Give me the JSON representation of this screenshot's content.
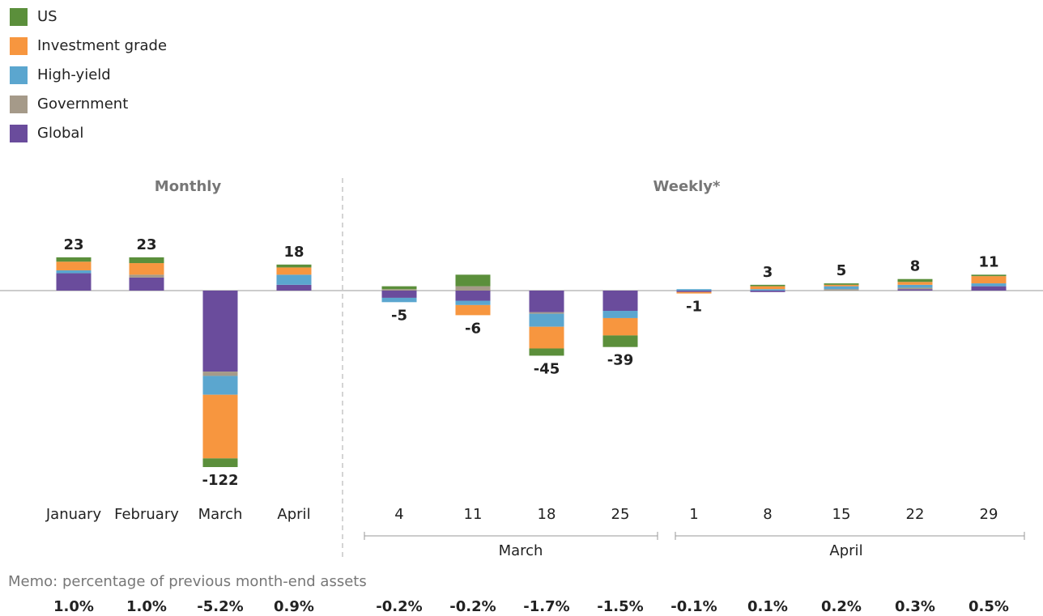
{
  "chart_data": {
    "type": "stacked-bar",
    "panels": [
      "Monthly",
      "Weekly*"
    ],
    "categories": [
      "January",
      "February",
      "March",
      "April",
      "4",
      "11",
      "18",
      "25",
      "1",
      "8",
      "15",
      "22",
      "29"
    ],
    "month_groups": [
      "March",
      "April"
    ],
    "series": [
      {
        "name": "US",
        "color": "#5b8f3b",
        "values": [
          3,
          4,
          -6,
          2,
          2,
          8,
          -5,
          -8,
          0,
          1,
          1,
          2,
          1
        ]
      },
      {
        "name": "Investment grade",
        "color": "#f7963f",
        "values": [
          6,
          8,
          -44,
          5,
          0,
          -7,
          -15,
          -12,
          -1,
          2,
          1,
          2,
          5
        ]
      },
      {
        "name": "High-yield",
        "color": "#5ba6cf",
        "values": [
          2,
          0,
          -13,
          7,
          -3,
          -3,
          -9,
          -5,
          1,
          1,
          2,
          2,
          2
        ]
      },
      {
        "name": "Government",
        "color": "#a59a89",
        "values": [
          0,
          2,
          -3,
          0,
          1,
          3,
          -1,
          0,
          0,
          0,
          1,
          1,
          0
        ]
      },
      {
        "name": "Global",
        "color": "#6a4c9c",
        "values": [
          12,
          9,
          -56,
          4,
          -5,
          -7,
          -15,
          -14,
          -1,
          -1,
          0,
          1,
          3
        ]
      }
    ],
    "totals": [
      23,
      23,
      -122,
      18,
      -5,
      -6,
      -45,
      -39,
      -1,
      3,
      5,
      8,
      11
    ],
    "memo": {
      "title": "Memo: percentage of previous month-end assets",
      "values": [
        1.0,
        1.0,
        -5.2,
        0.9,
        -0.2,
        -0.2,
        -1.7,
        -1.5,
        -0.1,
        0.1,
        0.2,
        0.3,
        0.5
      ],
      "value_labels": [
        "1.0%",
        "1.0%",
        "-5.2%",
        "0.9%",
        "-0.2%",
        "-0.2%",
        "-1.7%",
        "-1.5%",
        "-0.1%",
        "0.1%",
        "0.2%",
        "0.3%",
        "0.5%"
      ]
    }
  }
}
